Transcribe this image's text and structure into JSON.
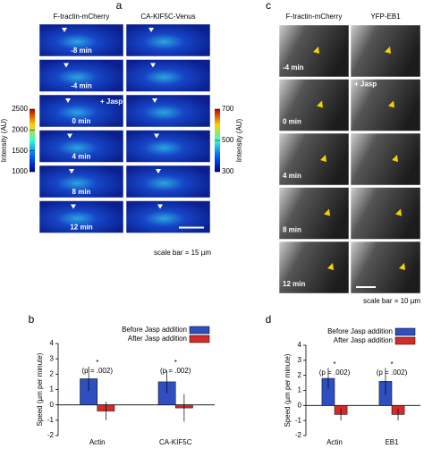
{
  "panels": {
    "a": {
      "label": "a",
      "columns": [
        "F-tractin-mCherry",
        "CA-KIF5C-Venus"
      ],
      "times": [
        "-8 min",
        "-4 min",
        "0 min",
        "4 min",
        "8 min",
        "12 min"
      ],
      "treatment": "+ Jasp",
      "scale_bar": "scale bar = 15 µm",
      "colorbar_left": {
        "label": "Intensity (AU)",
        "lim": [
          1000,
          2500
        ],
        "ticks": [
          1000,
          1500,
          2000,
          2500
        ]
      },
      "colorbar_right": {
        "label": "Intensity (AU)",
        "lim": [
          300,
          700
        ],
        "ticks": [
          300,
          500,
          700
        ]
      }
    },
    "c": {
      "label": "c",
      "columns": [
        "F-tractin-mCherry",
        "YFP-EB1"
      ],
      "times": [
        "-4 min",
        "0 min",
        "4 min",
        "8 min",
        "12 min"
      ],
      "treatment": "+ Jasp",
      "scale_bar": "scale bar = 10 µm"
    }
  },
  "chart_data": [
    {
      "type": "bar",
      "panel_label": "b",
      "ylabel": "Speed (µm per minute)",
      "categories": [
        "Actin",
        "CA-KIF5C"
      ],
      "series": [
        {
          "name": "Before Jasp addition",
          "color": "#2f4fc0",
          "values": [
            1.7,
            1.5
          ],
          "errors": [
            0.8,
            0.75
          ]
        },
        {
          "name": "After Jasp addition",
          "color": "#d42a2a",
          "values": [
            -0.4,
            -0.2
          ],
          "errors": [
            0.6,
            0.9
          ]
        }
      ],
      "significance": [
        "*",
        "*"
      ],
      "p_labels": [
        "(p = .002)",
        "(p = .002)"
      ],
      "ylim": [
        -2,
        4
      ],
      "yticks": [
        -2,
        -1,
        0,
        1,
        2,
        3,
        4
      ]
    },
    {
      "type": "bar",
      "panel_label": "d",
      "ylabel": "Speed (µm per minute)",
      "categories": [
        "Actin",
        "EB1"
      ],
      "series": [
        {
          "name": "Before Jasp addition",
          "color": "#2f4fc0",
          "values": [
            1.8,
            1.6
          ],
          "errors": [
            0.7,
            0.9
          ]
        },
        {
          "name": "After Jasp addition",
          "color": "#d42a2a",
          "values": [
            -0.6,
            -0.6
          ],
          "errors": [
            0.4,
            0.4
          ]
        }
      ],
      "significance": [
        "*",
        "*"
      ],
      "p_labels": [
        "(p = .002)",
        "(p = .002)"
      ],
      "ylim": [
        -2,
        4
      ],
      "yticks": [
        -2,
        -1,
        0,
        1,
        2,
        3,
        4
      ]
    }
  ]
}
